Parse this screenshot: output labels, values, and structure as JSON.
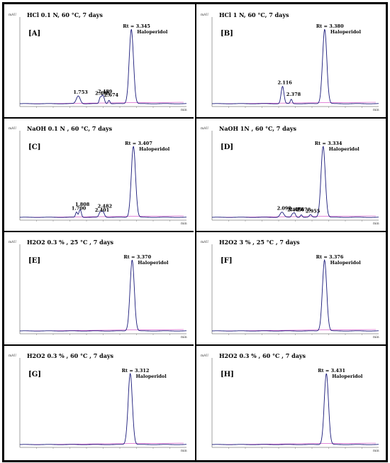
{
  "chart_data": [
    {
      "panel": "[A]",
      "title": "HCl  0.1 N, 60 °C, 7 days",
      "type": "line",
      "ylabel": "mAU",
      "xlabel": "min",
      "main_peak": {
        "name": "Haloperidol",
        "rt_text": "Rt = 3.345",
        "rt": 3.345
      },
      "peaks": [
        {
          "label": "1.753",
          "rt": 1.753
        },
        {
          "label": "2.408",
          "rt": 2.408
        },
        {
          "label": "2.489",
          "rt": 2.489
        },
        {
          "label": "2.674",
          "rt": 2.674
        }
      ],
      "xlim": [
        0,
        5
      ]
    },
    {
      "panel": "[B]",
      "title": "HCl 1 N, 60 °C, 7 days",
      "type": "line",
      "ylabel": "mAU",
      "xlabel": "min",
      "main_peak": {
        "name": "Haloperidol",
        "rt_text": "Rt = 3.380",
        "rt": 3.38
      },
      "peaks": [
        {
          "label": "2.116",
          "rt": 2.116
        },
        {
          "label": "2.378",
          "rt": 2.378
        }
      ],
      "xlim": [
        0,
        5
      ]
    },
    {
      "panel": "[C]",
      "title": "NaOH 0.1 N , 60 °C, 7 days",
      "type": "line",
      "ylabel": "mAU",
      "xlabel": "min",
      "main_peak": {
        "name": "Haloperidol",
        "rt_text": "Rt = 3.407",
        "rt": 3.407
      },
      "peaks": [
        {
          "label": "1.700",
          "rt": 1.7
        },
        {
          "label": "1.808",
          "rt": 1.808
        },
        {
          "label": "2.401",
          "rt": 2.401
        },
        {
          "label": "2.482",
          "rt": 2.482
        }
      ],
      "xlim": [
        0,
        5
      ]
    },
    {
      "panel": "[D]",
      "title": "NaOH 1N , 60 °C, 7 days",
      "type": "line",
      "ylabel": "mAU",
      "xlabel": "min",
      "main_peak": {
        "name": "Haloperidol",
        "rt_text": "Rt = 3.334",
        "rt": 3.334
      },
      "peaks": [
        {
          "label": "2.098",
          "rt": 2.098
        },
        {
          "label": "2.409",
          "rt": 2.409
        },
        {
          "label": "2.473",
          "rt": 2.473
        },
        {
          "label": "2.678",
          "rt": 2.678
        },
        {
          "label": "2.955",
          "rt": 2.955
        }
      ],
      "xlim": [
        0,
        5
      ]
    },
    {
      "panel": "[E]",
      "title": "H2O2 0.3 % , 25 °C , 7 days",
      "type": "line",
      "ylabel": "mAU",
      "xlabel": "min",
      "main_peak": {
        "name": "Haloperidol",
        "rt_text": "Rt = 3.370",
        "rt": 3.37
      },
      "peaks": [],
      "xlim": [
        0,
        5
      ]
    },
    {
      "panel": "[F]",
      "title": "H2O2 3 % , 25 °C , 7 days",
      "type": "line",
      "ylabel": "mAU",
      "xlabel": "min",
      "main_peak": {
        "name": "Haloperidol",
        "rt_text": "Rt = 3.376",
        "rt": 3.376
      },
      "peaks": [],
      "xlim": [
        0,
        5
      ]
    },
    {
      "panel": "[G]",
      "title": "H2O2 0.3 % , 60 °C , 7 days",
      "type": "line",
      "ylabel": "mAU",
      "xlabel": "min",
      "main_peak": {
        "name": "Haloperidol",
        "rt_text": "Rt = 3.312",
        "rt": 3.312
      },
      "peaks": [],
      "xlim": [
        0,
        5
      ]
    },
    {
      "panel": "[H]",
      "title": "H2O2 0.3 % , 60 °C , 7 days",
      "type": "line",
      "ylabel": "mAU",
      "xlabel": "min",
      "main_peak": {
        "name": "Haloperidol",
        "rt_text": "Rt = 3.431",
        "rt": 3.431
      },
      "peaks": [],
      "xlim": [
        0,
        5
      ]
    }
  ],
  "colors": {
    "trace": "#1a1a7a",
    "baseline": "#d040c0",
    "frame": "#000000"
  }
}
